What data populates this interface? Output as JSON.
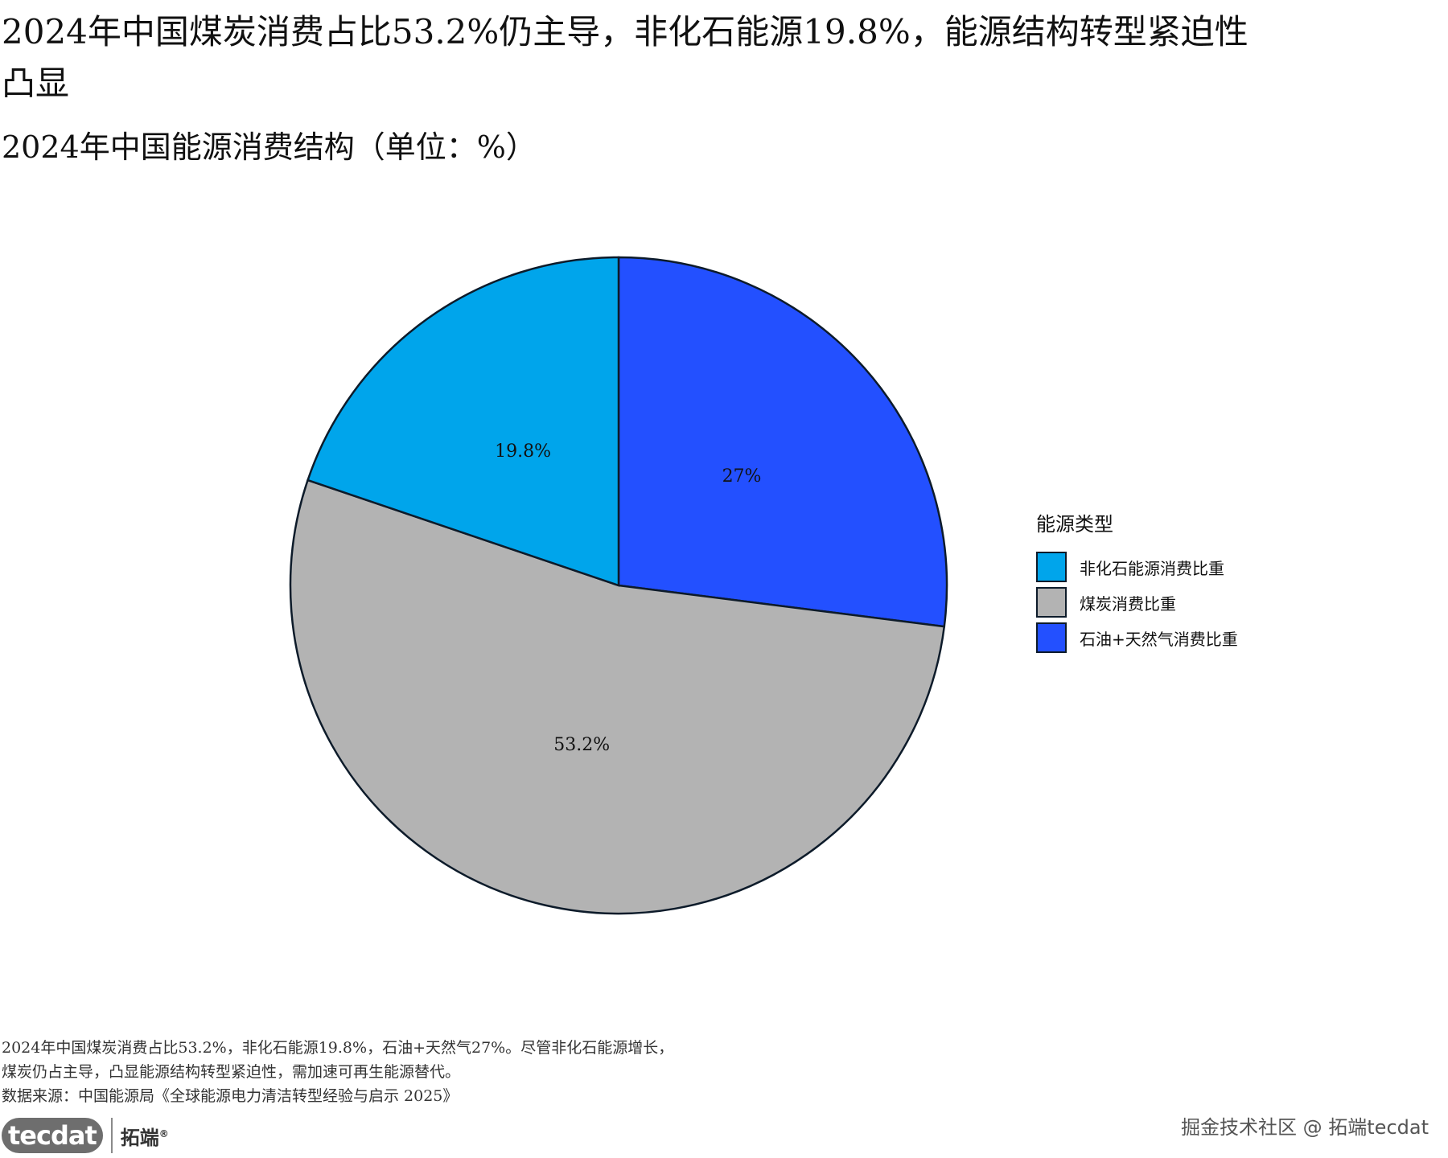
{
  "header": {
    "title": "2024年中国煤炭消费占比53.2%仍主导，非化石能源19.8%，能源结构转型紧迫性凸显",
    "subtitle": "2024年中国能源消费结构（单位：%）"
  },
  "chart_data": {
    "type": "pie",
    "title": "2024年中国能源消费结构（单位：%）",
    "legend_title": "能源类型",
    "legend_position": "right",
    "slices": [
      {
        "name": "石油+天然气消费比重",
        "value": 27,
        "label": "27%",
        "color": "#2350ff"
      },
      {
        "name": "煤炭消费比重",
        "value": 53.2,
        "label": "53.2%",
        "color": "#b3b3b3"
      },
      {
        "name": "非化石能源消费比重",
        "value": 19.8,
        "label": "19.8%",
        "color": "#00a5eb"
      }
    ],
    "legend_order": [
      "非化石能源消费比重",
      "煤炭消费比重",
      "石油+天然气消费比重"
    ],
    "outline_color": "#0d1b2a"
  },
  "caption": {
    "line1": "2024年中国煤炭消费占比53.2%，非化石能源19.8%，石油+天然气27%。尽管非化石能源增长，",
    "line2": "煤炭仍占主导，凸显能源结构转型紧迫性，需加速可再生能源替代。",
    "source": "数据来源：中国能源局《全球能源电力清洁转型经验与启示 2025》"
  },
  "footer": {
    "logo_mark": "tecdat",
    "logo_text": "拓端",
    "registered": "®",
    "watermark": "掘金技术社区 @ 拓端tecdat"
  }
}
